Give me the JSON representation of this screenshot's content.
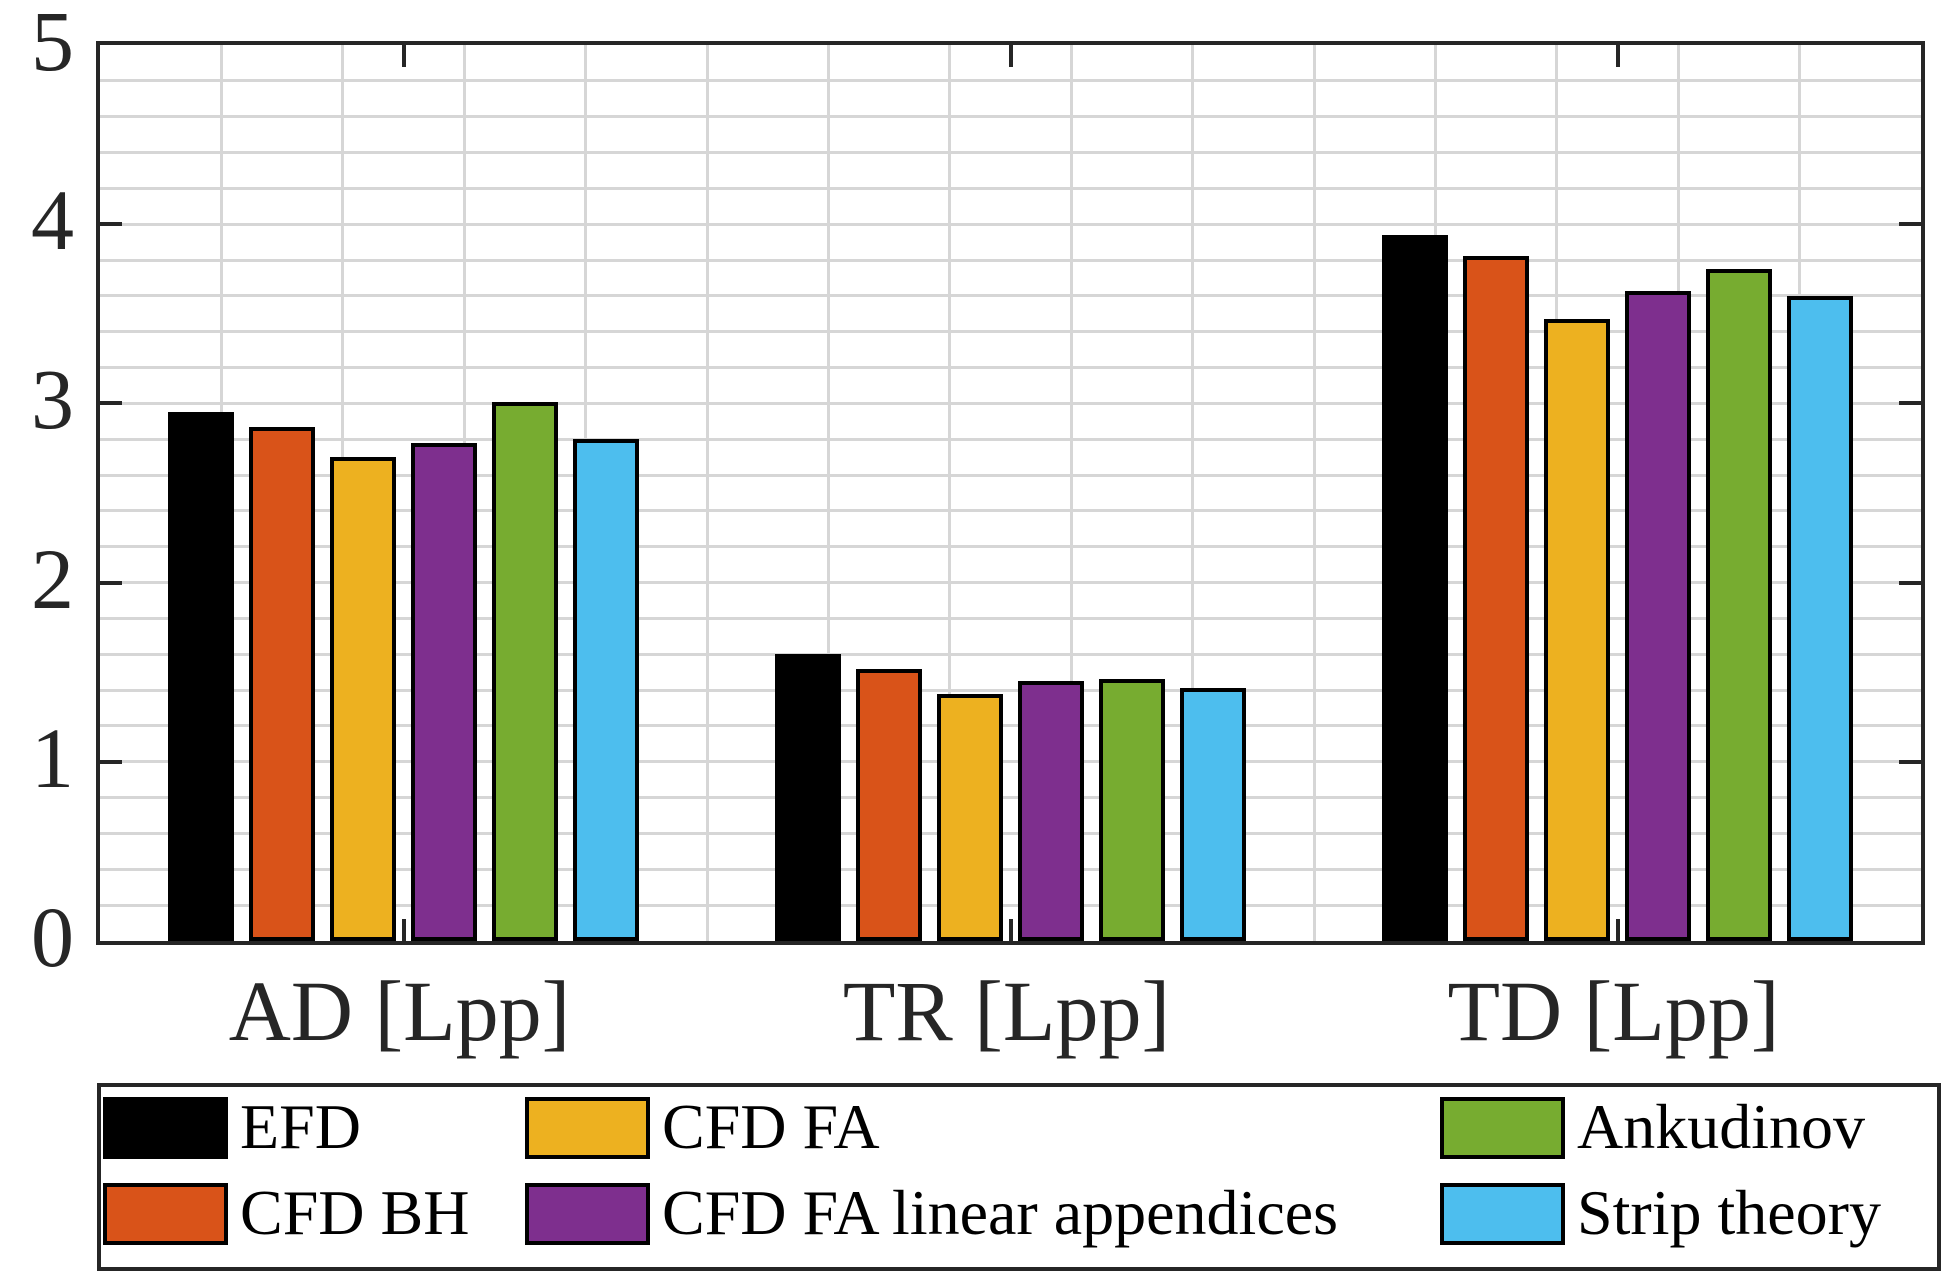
{
  "figure": {
    "background": "#ffffff",
    "axis_color": "#262626",
    "grid_color": "#d6d6d6",
    "bar_outline_color": "#000000"
  },
  "chart_data": {
    "type": "bar",
    "title": "",
    "xlabel": "",
    "ylabel": "",
    "categories": [
      "AD [Lpp]",
      "TR [Lpp]",
      "TD [Lpp]"
    ],
    "series": [
      {
        "name": "EFD",
        "color": "#000000",
        "values": [
          2.95,
          1.6,
          3.94
        ]
      },
      {
        "name": "CFD BH",
        "color": "#d95319",
        "values": [
          2.87,
          1.52,
          3.82
        ]
      },
      {
        "name": "CFD FA",
        "color": "#edb120",
        "values": [
          2.7,
          1.38,
          3.47
        ]
      },
      {
        "name": "CFD FA linear appendices",
        "color": "#7e2f8e",
        "values": [
          2.78,
          1.45,
          3.63
        ]
      },
      {
        "name": "Ankudinov",
        "color": "#77ac30",
        "values": [
          3.01,
          1.46,
          3.75
        ]
      },
      {
        "name": "Strip theory",
        "color": "#4dbeee",
        "values": [
          2.8,
          1.41,
          3.6
        ]
      }
    ],
    "ylim": [
      0,
      5
    ],
    "yticks": [
      0,
      1,
      2,
      3,
      4,
      5
    ],
    "xlim": [
      0.5,
      3.5
    ],
    "group_centers": [
      1,
      2,
      3
    ],
    "grid": true,
    "grid_step": 0.2,
    "bar_group_width": 0.8,
    "bar_fill_ratio": 0.82,
    "legend_position": "below",
    "legend_rows": 2,
    "legend_columns": 3
  }
}
